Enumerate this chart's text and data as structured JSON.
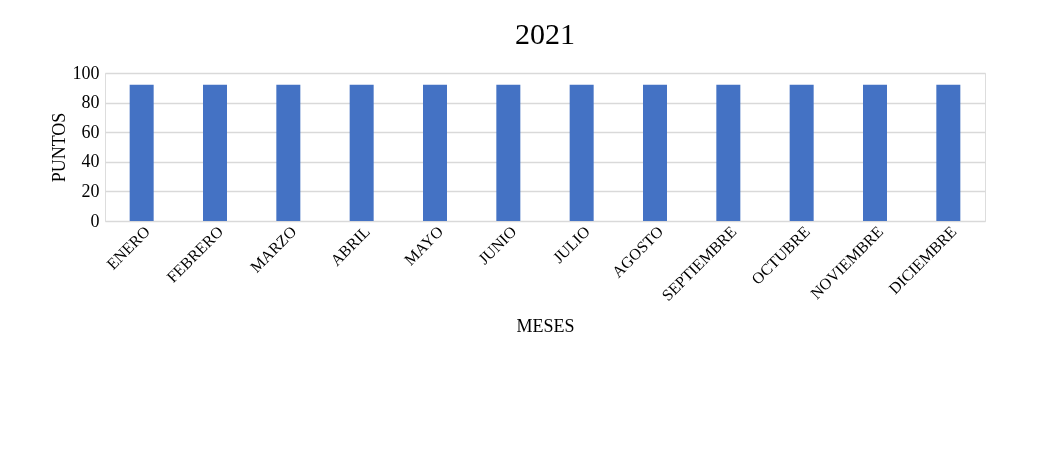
{
  "chart_data": {
    "type": "bar",
    "title": "2021",
    "xlabel": "MESES",
    "ylabel": "PUNTOS",
    "categories": [
      "ENERO",
      "FEBRERO",
      "MARZO",
      "ABRIL",
      "MAYO",
      "JUNIO",
      "JULIO",
      "AGOSTO",
      "SEPTIEMBRE",
      "OCTUBRE",
      "NOVIEMBRE",
      "DICIEMBRE"
    ],
    "values": [
      92,
      92,
      92,
      92,
      92,
      92,
      92,
      92,
      92,
      92,
      92,
      92
    ],
    "color": "#4472c4",
    "ylim": [
      0,
      100
    ],
    "yticks": [
      0,
      20,
      40,
      60,
      80,
      100
    ],
    "grid": "y"
  }
}
